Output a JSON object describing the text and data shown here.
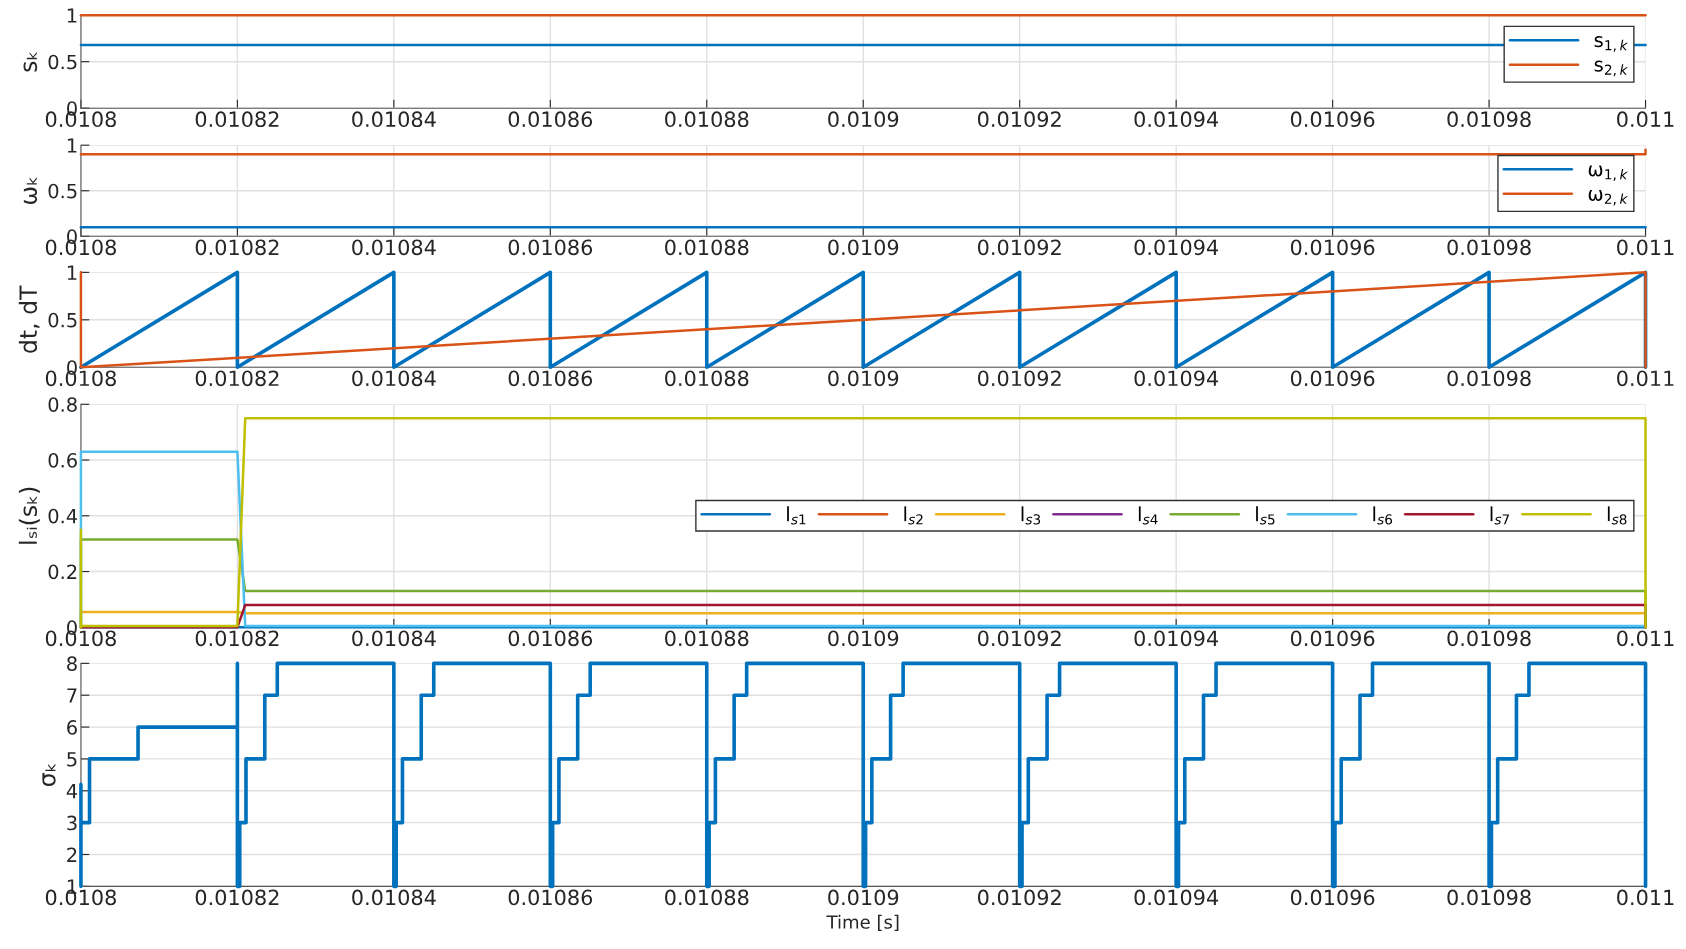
{
  "chart_data": [
    {
      "type": "line",
      "ylabel": "sₖ",
      "xlim": [
        0.0108,
        0.011
      ],
      "xticks": [
        0.0108,
        0.01082,
        0.01084,
        0.01086,
        0.01088,
        0.0109,
        0.01092,
        0.01094,
        0.01096,
        0.01098,
        0.011
      ],
      "ylim": [
        0,
        1
      ],
      "yticks": [
        0,
        0.5,
        1
      ],
      "grid": true,
      "legend": "right",
      "series": [
        {
          "name": "s$_{1,k}$",
          "color": "#0072bd",
          "x": [
            0.0108,
            0.011
          ],
          "values": [
            0.68,
            0.68
          ]
        },
        {
          "name": "s$_{2,k}$",
          "color": "#d95319",
          "x": [
            0.0108,
            0.011
          ],
          "values": [
            1,
            1
          ]
        }
      ]
    },
    {
      "type": "line",
      "ylabel": "ωₖ",
      "xlim": [
        0.0108,
        0.011
      ],
      "xticks": [
        0.0108,
        0.01082,
        0.01084,
        0.01086,
        0.01088,
        0.0109,
        0.01092,
        0.01094,
        0.01096,
        0.01098,
        0.011
      ],
      "ylim": [
        0,
        1
      ],
      "yticks": [
        0,
        0.5,
        1
      ],
      "grid": true,
      "legend": "right",
      "series": [
        {
          "name": "ω$_{1,k}$",
          "color": "#0072bd",
          "x": [
            0.0108,
            0.011
          ],
          "values": [
            0.1,
            0.1
          ]
        },
        {
          "name": "ω$_{2,k}$",
          "color": "#d95319",
          "x": [
            0.0108,
            0.011,
            0.011
          ],
          "values": [
            0.9,
            0.9,
            0.95
          ]
        }
      ]
    },
    {
      "type": "line",
      "ylabel": "dt, dT",
      "xlim": [
        0.0108,
        0.011
      ],
      "xticks": [
        0.0108,
        0.01082,
        0.01084,
        0.01086,
        0.01088,
        0.0109,
        0.01092,
        0.01094,
        0.01096,
        0.01098,
        0.011
      ],
      "ylim": [
        0,
        1
      ],
      "yticks": [
        0,
        0.5,
        1
      ],
      "grid": true,
      "series": [
        {
          "color": "#0072bd",
          "x": [
            0.0108,
            0.01082,
            0.01082,
            0.01084,
            0.01084,
            0.01086,
            0.01086,
            0.01088,
            0.01088,
            0.0109,
            0.0109,
            0.01092,
            0.01092,
            0.01094,
            0.01094,
            0.01096,
            0.01096,
            0.01098,
            0.01098,
            0.011,
            0.011
          ],
          "values": [
            0,
            1,
            0,
            1,
            0,
            1,
            0,
            1,
            0,
            1,
            0,
            1,
            0,
            1,
            0,
            1,
            0,
            1,
            0,
            1,
            0
          ]
        },
        {
          "color": "#d95319",
          "x": [
            0.0108,
            0.0108,
            0.011,
            0.011
          ],
          "values": [
            1,
            0,
            1,
            0
          ]
        }
      ]
    },
    {
      "type": "line",
      "ylabel": "lₛᵢ(sₖ)",
      "xlim": [
        0.0108,
        0.011
      ],
      "xticks": [
        0.0108,
        0.01082,
        0.01084,
        0.01086,
        0.01088,
        0.0109,
        0.01092,
        0.01094,
        0.01096,
        0.01098,
        0.011
      ],
      "ylim": [
        0,
        0.8
      ],
      "yticks": [
        0,
        0.2,
        0.4,
        0.6,
        0.8
      ],
      "grid": true,
      "legend": "right",
      "series": [
        {
          "name": "l$_{s1}$",
          "color": "#0072bd",
          "x": [
            0.0108,
            0.011
          ],
          "values": [
            0,
            0
          ]
        },
        {
          "name": "l$_{s2}$",
          "color": "#d95319"
        },
        {
          "name": "l$_{s3}$",
          "color": "#edb120",
          "x": [
            0.0108,
            0.0108,
            0.01082,
            0.010821,
            0.011,
            0.011
          ],
          "values": [
            0,
            0.055,
            0.055,
            0.05,
            0.05,
            0
          ]
        },
        {
          "name": "l$_{s4}$",
          "color": "#7e2f8e"
        },
        {
          "name": "l$_{s5}$",
          "color": "#77ac30",
          "x": [
            0.0108,
            0.0108,
            0.01082,
            0.010821,
            0.011,
            0.011
          ],
          "values": [
            0,
            0.315,
            0.315,
            0.13,
            0.13,
            0
          ]
        },
        {
          "name": "l$_{s6}$",
          "color": "#4dbeee",
          "x": [
            0.0108,
            0.0108,
            0.01082,
            0.010821,
            0.011
          ],
          "values": [
            0,
            0.63,
            0.63,
            0.005,
            0.005
          ]
        },
        {
          "name": "l$_{s7}$",
          "color": "#a2142f",
          "x": [
            0.0108,
            0.01082,
            0.010821,
            0.011,
            0.011
          ],
          "values": [
            0,
            0,
            0.08,
            0.08,
            0
          ]
        },
        {
          "name": "l$_{s8}$",
          "color": "#bfbf00",
          "x": [
            0.0108,
            0.0108,
            0.0108,
            0.01082,
            0.010821,
            0.011,
            0.011
          ],
          "values": [
            0,
            0.35,
            0.005,
            0.005,
            0.75,
            0.75,
            0
          ]
        }
      ]
    },
    {
      "type": "step",
      "ylabel": "σₖ",
      "xlabel": "Time [s]",
      "xlim": [
        0.0108,
        0.011
      ],
      "xticks": [
        0.0108,
        0.01082,
        0.01084,
        0.01086,
        0.01088,
        0.0109,
        0.01092,
        0.01094,
        0.01096,
        0.01098,
        0.011
      ],
      "ylim": [
        1,
        8
      ],
      "yticks": [
        1,
        2,
        3,
        4,
        5,
        6,
        7,
        8
      ],
      "grid": true,
      "series": [
        {
          "color": "#0072bd",
          "x": [
            0.0108,
            0.0108,
            0.0108,
            0.0108011,
            0.0108073,
            0.01082,
            0.01082,
            0.0108203,
            0.0108211,
            0.0108235,
            0.0108251,
            0.01084,
            0.0108403,
            0.0108411,
            0.0108435,
            0.0108451,
            0.01086,
            0.0108603,
            0.0108611,
            0.0108635,
            0.0108651,
            0.01088,
            0.0108803,
            0.0108811,
            0.0108835,
            0.0108851,
            0.0109,
            0.0109003,
            0.0109011,
            0.0109035,
            0.0109051,
            0.01092,
            0.0109203,
            0.0109211,
            0.0109235,
            0.0109251,
            0.01094,
            0.0109403,
            0.0109411,
            0.0109435,
            0.0109451,
            0.01096,
            0.0109603,
            0.0109611,
            0.0109635,
            0.0109651,
            0.01098,
            0.0109803,
            0.0109811,
            0.0109835,
            0.0109851,
            0.011
          ],
          "values": [
            1,
            4.2,
            3,
            5,
            6,
            8,
            1,
            3,
            5,
            7,
            8,
            1,
            3,
            5,
            7,
            8,
            1,
            3,
            5,
            7,
            8,
            1,
            3,
            5,
            7,
            8,
            1,
            3,
            5,
            7,
            8,
            1,
            3,
            5,
            7,
            8,
            1,
            3,
            5,
            7,
            8,
            1,
            3,
            5,
            7,
            8,
            1,
            3,
            5,
            7,
            8,
            1
          ]
        }
      ]
    }
  ]
}
